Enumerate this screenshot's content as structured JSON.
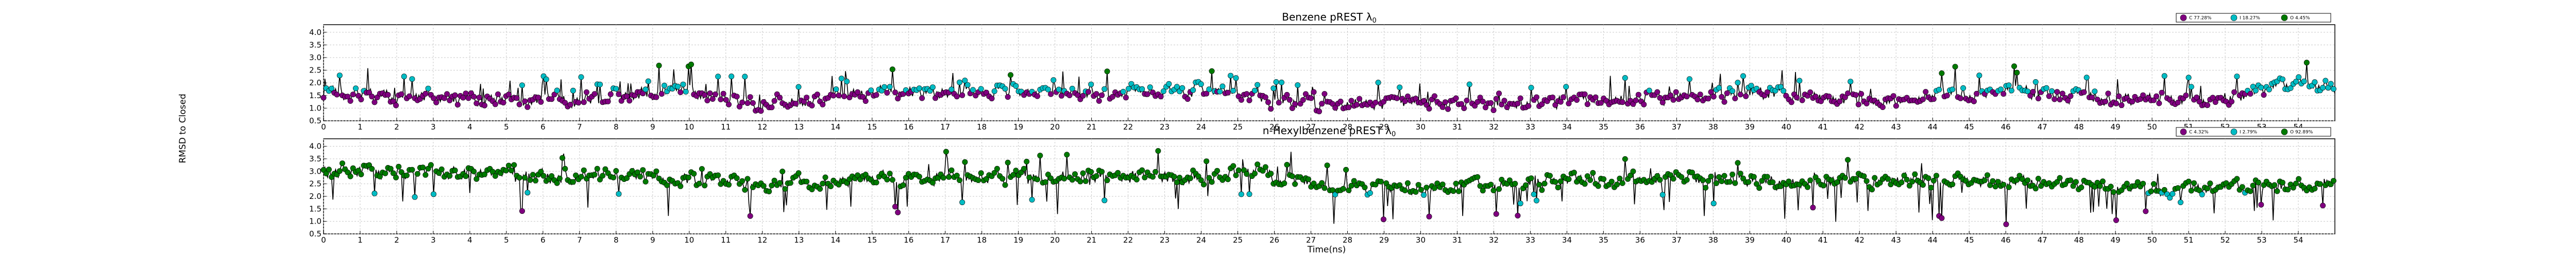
{
  "figure": {
    "xlabel": "Time(ns)",
    "ylabel": "RMSD to Closed"
  },
  "chart_data": [
    {
      "type": "line",
      "title": "Benzene pREST λ",
      "title_sub": "0",
      "xlim": [
        0,
        55
      ],
      "ylim": [
        0.5,
        4.3
      ],
      "yticks": [
        0.5,
        1.0,
        1.5,
        2.0,
        2.5,
        3.0,
        3.5,
        4.0
      ],
      "xticks": [
        0,
        1,
        2,
        3,
        4,
        5,
        6,
        7,
        8,
        9,
        10,
        11,
        12,
        13,
        14,
        15,
        16,
        17,
        18,
        19,
        20,
        21,
        22,
        23,
        24,
        25,
        26,
        27,
        28,
        29,
        30,
        31,
        32,
        33,
        34,
        35,
        36,
        37,
        38,
        39,
        40,
        41,
        42,
        43,
        44,
        45,
        46,
        47,
        48,
        49,
        50,
        51,
        52,
        53,
        54
      ],
      "grid": true,
      "legend_position": "top-right",
      "line_color": "#000000",
      "series": [
        {
          "label": "C 77.28%",
          "color": "#800080"
        },
        {
          "label": "I 18.27%",
          "color": "#00bcc4"
        },
        {
          "label": "O 4.45%",
          "color": "#007a00"
        }
      ],
      "regime_x": [
        0,
        3,
        6,
        8,
        10,
        11.5,
        15,
        18,
        21,
        24,
        26,
        29,
        32,
        36,
        40,
        42,
        46,
        49,
        52,
        54,
        55
      ],
      "regime_y": [
        1.6,
        1.4,
        1.3,
        1.5,
        1.7,
        1.1,
        1.6,
        1.7,
        1.6,
        1.7,
        1.2,
        1.2,
        1.2,
        1.4,
        1.6,
        1.2,
        1.7,
        1.3,
        1.4,
        2.0,
        1.8
      ],
      "noise": 0.22,
      "class_thresholds": [
        1.65,
        2.3
      ],
      "up_spike_prob": 0.08,
      "up_spike_size": [
        0.4,
        0.9
      ],
      "down_spike_prob": 0.0,
      "down_spike_size": [
        0,
        0
      ],
      "clip": [
        0.7,
        2.8
      ]
    },
    {
      "type": "line",
      "title": "n-Hexylbenzene pREST λ",
      "title_sub": "0",
      "xlim": [
        0,
        55
      ],
      "ylim": [
        0.5,
        4.3
      ],
      "yticks": [
        0.5,
        1.0,
        1.5,
        2.0,
        2.5,
        3.0,
        3.5,
        4.0
      ],
      "xticks": [
        0,
        1,
        2,
        3,
        4,
        5,
        6,
        7,
        8,
        9,
        10,
        11,
        12,
        13,
        14,
        15,
        16,
        17,
        18,
        19,
        20,
        21,
        22,
        23,
        24,
        25,
        26,
        27,
        28,
        29,
        30,
        31,
        32,
        33,
        34,
        35,
        36,
        37,
        38,
        39,
        40,
        41,
        42,
        43,
        44,
        45,
        46,
        47,
        48,
        49,
        50,
        51,
        52,
        53,
        54
      ],
      "grid": true,
      "legend_position": "top-right",
      "line_color": "#000000",
      "series": [
        {
          "label": "C 4.32%",
          "color": "#800080"
        },
        {
          "label": "I 2.79%",
          "color": "#00bcc4"
        },
        {
          "label": "O 92.89%",
          "color": "#007a00"
        }
      ],
      "regime_x": [
        0,
        3,
        6,
        9,
        12,
        15,
        18,
        21,
        24,
        25.5,
        26,
        28,
        30,
        33,
        36,
        40,
        44,
        48,
        50,
        52,
        55
      ],
      "regime_y": [
        3.0,
        3.0,
        2.8,
        2.8,
        2.5,
        2.7,
        2.8,
        2.8,
        2.7,
        3.1,
        2.7,
        2.4,
        2.3,
        2.6,
        2.7,
        2.6,
        2.6,
        2.5,
        2.3,
        2.3,
        2.5
      ],
      "noise": 0.22,
      "class_thresholds": [
        1.7,
        2.15
      ],
      "up_spike_prob": 0.03,
      "up_spike_size": [
        0.5,
        0.9
      ],
      "down_spike_prob": 0.05,
      "down_spike_size": [
        0.6,
        1.4
      ],
      "clip": [
        0.8,
        4.1
      ]
    }
  ]
}
